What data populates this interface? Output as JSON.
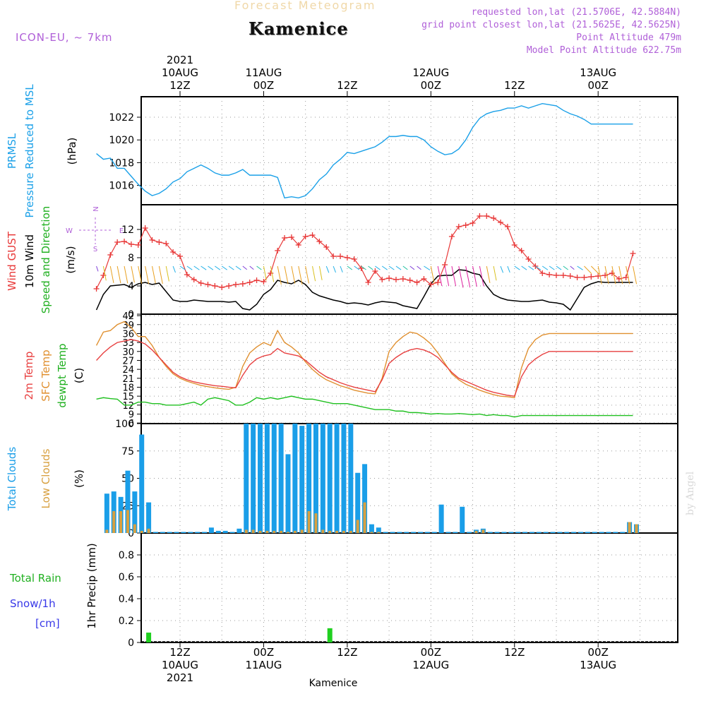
{
  "header": {
    "product": "Forecast Meteogram",
    "location": "Kamenice",
    "model": "ICON-EU, ~ 7km",
    "requested": "requested lon,lat (21.5706E, 42.5884N)",
    "gridpoint": "grid point closest lon,lat (21.5625E, 42.5625N)",
    "point_alt": "Point Altitude 479m",
    "model_alt": "Model Point Altitude 622.75m",
    "signature": "by Angel",
    "footer_location": "Kamenice"
  },
  "colors": {
    "pressure": "#1aa0e8",
    "gust": "#e83838",
    "wind": "#000000",
    "temp": "#e84040",
    "sfc": "#e09030",
    "dew": "#20c020",
    "clouds_total": "#1a9ee8",
    "clouds_low": "#d8a040",
    "rain": "#20d020",
    "snow": "#3838e8",
    "label_green": "#20b020",
    "purple": "#b060d8"
  },
  "time_axis": {
    "top": [
      {
        "hour": 12,
        "lines": [
          "2021",
          "10AUG",
          "12Z"
        ]
      },
      {
        "hour": 24,
        "lines": [
          "11AUG",
          "00Z"
        ]
      },
      {
        "hour": 36,
        "lines": [
          "12Z"
        ]
      },
      {
        "hour": 48,
        "lines": [
          "12AUG",
          "00Z"
        ]
      },
      {
        "hour": 60,
        "lines": [
          "12Z"
        ]
      },
      {
        "hour": 72,
        "lines": [
          "13AUG",
          "00Z"
        ]
      }
    ],
    "bottom": [
      {
        "hour": 12,
        "lines": [
          "12Z",
          "10AUG",
          "2021"
        ]
      },
      {
        "hour": 24,
        "lines": [
          "00Z",
          "11AUG"
        ]
      },
      {
        "hour": 36,
        "lines": [
          "12Z"
        ]
      },
      {
        "hour": 48,
        "lines": [
          "00Z",
          "12AUG"
        ]
      },
      {
        "hour": 60,
        "lines": [
          "12Z"
        ]
      },
      {
        "hour": 72,
        "lines": [
          "00Z",
          "13AUG"
        ]
      }
    ]
  },
  "panel_labels": {
    "pressure": [
      "PRMSL",
      "Pressure Reduced to MSL",
      "(hPa)"
    ],
    "wind": [
      "Wind GUST",
      "10m Wind",
      "Speed and Direction",
      "(m/s)"
    ],
    "compass": {
      "n": "N",
      "s": "S",
      "w": "W",
      "e": "E"
    },
    "temp": [
      "2m Temp",
      "SFC Temp",
      "dewpt Temp",
      "(C)"
    ],
    "clouds": [
      "Total Clouds",
      "Low Clouds",
      "(%)"
    ],
    "precip": [
      "Total   Rain",
      "Snow/1h",
      "[cm]",
      "1hr Precip (mm)"
    ]
  },
  "chart_data": [
    {
      "type": "line",
      "title": "PRMSL",
      "ylabel": "(hPa)",
      "ylim": [
        1014.3,
        1023.8
      ],
      "yticks": [
        "1016",
        "1018",
        "1020",
        "1022"
      ],
      "ytick_values": [
        1016,
        1018,
        1020,
        1022
      ],
      "x_hours": [
        0,
        1,
        2,
        3,
        4,
        5,
        6,
        7,
        8,
        9,
        10,
        11,
        12,
        13,
        14,
        15,
        16,
        17,
        18,
        19,
        20,
        21,
        22,
        23,
        24,
        25,
        26,
        27,
        28,
        29,
        30,
        31,
        32,
        33,
        34,
        35,
        36,
        37,
        38,
        39,
        40,
        41,
        42,
        43,
        44,
        45,
        46,
        47,
        48,
        49,
        50,
        51,
        52,
        53,
        54,
        55,
        56,
        57,
        58,
        59,
        60,
        61,
        62,
        63,
        64,
        65,
        66,
        67,
        68,
        69,
        70,
        71,
        72,
        73,
        74,
        75,
        76,
        77
      ],
      "series": [
        {
          "name": "PRMSL",
          "values": [
            1018.8,
            1018.3,
            1018.4,
            1017.5,
            1017.5,
            1016.8,
            1016.1,
            1015.5,
            1015.1,
            1015.3,
            1015.7,
            1016.3,
            1016.6,
            1017.2,
            1017.5,
            1017.8,
            1017.5,
            1017.1,
            1016.9,
            1016.9,
            1017.1,
            1017.4,
            1016.9,
            1016.9,
            1016.9,
            1016.9,
            1016.7,
            1014.9,
            1015.0,
            1014.9,
            1015.1,
            1015.7,
            1016.5,
            1017.0,
            1017.8,
            1018.3,
            1018.9,
            1018.8,
            1019.0,
            1019.2,
            1019.4,
            1019.8,
            1020.3,
            1020.3,
            1020.4,
            1020.3,
            1020.3,
            1020.0,
            1019.4,
            1019.0,
            1018.7,
            1018.8,
            1019.2,
            1020.0,
            1021.1,
            1021.9,
            1022.3,
            1022.5,
            1022.6,
            1022.8,
            1022.8,
            1023.0,
            1022.8,
            1023.0,
            1023.2,
            1023.1,
            1023.0,
            1022.6,
            1022.3,
            1022.1,
            1021.8,
            1021.4,
            1021.4,
            1021.4,
            1021.4,
            1021.4,
            1021.4,
            1021.4
          ]
        }
      ]
    },
    {
      "type": "line",
      "title": "Wind GUST / 10m Wind",
      "ylabel": "(m/s)",
      "ylim": [
        0,
        15.5
      ],
      "yticks": [
        "0",
        "4",
        "8",
        "12"
      ],
      "ytick_values": [
        0,
        4,
        8,
        12
      ],
      "x_hours": [
        0,
        1,
        2,
        3,
        4,
        5,
        6,
        7,
        8,
        9,
        10,
        11,
        12,
        13,
        14,
        15,
        16,
        17,
        18,
        19,
        20,
        21,
        22,
        23,
        24,
        25,
        26,
        27,
        28,
        29,
        30,
        31,
        32,
        33,
        34,
        35,
        36,
        37,
        38,
        39,
        40,
        41,
        42,
        43,
        44,
        45,
        46,
        47,
        48,
        49,
        50,
        51,
        52,
        53,
        54,
        55,
        56,
        57,
        58,
        59,
        60,
        61,
        62,
        63,
        64,
        65,
        66,
        67,
        68,
        69,
        70,
        71,
        72,
        73,
        74,
        75,
        76,
        77
      ],
      "series": [
        {
          "name": "Wind GUST",
          "values": [
            3.6,
            5.5,
            8.4,
            10.2,
            10.3,
            9.9,
            9.8,
            12.2,
            10.5,
            10.2,
            10.0,
            8.8,
            8.2,
            5.6,
            4.9,
            4.4,
            4.2,
            4.0,
            3.8,
            4.0,
            4.2,
            4.3,
            4.5,
            4.8,
            4.6,
            5.8,
            9.0,
            10.8,
            10.9,
            9.8,
            11.0,
            11.2,
            10.3,
            9.5,
            8.2,
            8.2,
            8.0,
            7.8,
            6.5,
            4.5,
            6.1,
            4.9,
            5.1,
            4.9,
            5.0,
            4.8,
            4.5,
            5.0,
            4.2,
            4.5,
            7.0,
            11.0,
            12.4,
            12.6,
            12.9,
            13.9,
            13.9,
            13.6,
            13.0,
            12.4,
            9.8,
            9.0,
            7.8,
            6.8,
            5.8,
            5.6,
            5.5,
            5.5,
            5.4,
            5.2,
            5.2,
            5.3,
            5.4,
            5.5,
            5.8,
            5.0,
            5.2,
            8.6
          ]
        },
        {
          "name": "10m Wind",
          "values": [
            0.6,
            2.8,
            4.0,
            4.1,
            4.2,
            3.8,
            4.3,
            4.5,
            4.2,
            4.4,
            3.2,
            2.0,
            1.8,
            1.8,
            2.0,
            1.9,
            1.8,
            1.8,
            1.8,
            1.7,
            1.8,
            0.8,
            0.6,
            1.4,
            2.8,
            3.5,
            4.8,
            4.5,
            4.3,
            4.8,
            4.2,
            3.1,
            2.6,
            2.3,
            2.0,
            1.8,
            1.5,
            1.6,
            1.5,
            1.3,
            1.6,
            1.8,
            1.7,
            1.6,
            1.2,
            1.0,
            0.8,
            2.5,
            4.3,
            5.4,
            5.5,
            5.5,
            6.3,
            6.2,
            5.8,
            5.6,
            4.0,
            2.8,
            2.3,
            2.0,
            1.9,
            1.8,
            1.8,
            1.9,
            2.0,
            1.7,
            1.6,
            1.4,
            0.6,
            2.2,
            3.8,
            4.3,
            4.6,
            4.5,
            4.5,
            4.5,
            4.5,
            4.5
          ]
        }
      ]
    },
    {
      "type": "line",
      "title": "2m Temp / SFC Temp / dewpt Temp",
      "ylabel": "(C)",
      "ylim": [
        5.8,
        42.5
      ],
      "yticks": [
        "6",
        "9",
        "12",
        "15",
        "18",
        "21",
        "24",
        "27",
        "30",
        "33",
        "36",
        "39",
        "42"
      ],
      "ytick_values": [
        6,
        9,
        12,
        15,
        18,
        21,
        24,
        27,
        30,
        33,
        36,
        39,
        42
      ],
      "x_hours": [
        0,
        1,
        2,
        3,
        4,
        5,
        6,
        7,
        8,
        9,
        10,
        11,
        12,
        13,
        14,
        15,
        16,
        17,
        18,
        19,
        20,
        21,
        22,
        23,
        24,
        25,
        26,
        27,
        28,
        29,
        30,
        31,
        32,
        33,
        34,
        35,
        36,
        37,
        38,
        39,
        40,
        41,
        42,
        43,
        44,
        45,
        46,
        47,
        48,
        49,
        50,
        51,
        52,
        53,
        54,
        55,
        56,
        57,
        58,
        59,
        60,
        61,
        62,
        63,
        64,
        65,
        66,
        67,
        68,
        69,
        70,
        71,
        72,
        73,
        74,
        75,
        76,
        77
      ],
      "series": [
        {
          "name": "2m Temp",
          "values": [
            27.0,
            29.5,
            31.5,
            33.0,
            33.5,
            34.0,
            33.5,
            32.5,
            30.5,
            28.0,
            25.5,
            23.0,
            21.5,
            20.5,
            19.8,
            19.3,
            18.9,
            18.5,
            18.3,
            18.0,
            17.8,
            22.0,
            25.5,
            27.5,
            28.5,
            29.0,
            31.0,
            29.5,
            29.0,
            28.5,
            27.0,
            25.0,
            23.0,
            21.5,
            20.5,
            19.5,
            18.7,
            18.0,
            17.5,
            17.0,
            16.5,
            20.5,
            26.0,
            28.0,
            29.5,
            30.5,
            31.0,
            30.5,
            29.5,
            28.0,
            25.5,
            23.0,
            21.0,
            20.0,
            19.0,
            18.0,
            17.0,
            16.3,
            15.8,
            15.3,
            15.0,
            21.5,
            25.5,
            27.5,
            29.0,
            30.0,
            30.0,
            30.0,
            30.0,
            30.0,
            30.0,
            30.0,
            30.0,
            30.0,
            30.0,
            30.0,
            30.0,
            30.0
          ]
        },
        {
          "name": "SFC Temp",
          "values": [
            32.0,
            36.5,
            37.0,
            39.0,
            40.0,
            38.0,
            35.0,
            35.0,
            32.0,
            28.0,
            25.0,
            22.5,
            21.0,
            20.0,
            19.3,
            18.6,
            18.2,
            17.8,
            17.5,
            17.3,
            18.0,
            25.0,
            29.5,
            31.5,
            33.0,
            32.0,
            37.0,
            33.0,
            31.5,
            29.5,
            26.5,
            24.0,
            22.0,
            20.5,
            19.5,
            18.5,
            17.8,
            17.0,
            16.5,
            16.0,
            15.8,
            21.0,
            30.0,
            33.0,
            35.0,
            36.5,
            36.0,
            34.5,
            32.5,
            29.5,
            26.0,
            22.5,
            20.5,
            19.0,
            18.0,
            17.0,
            16.2,
            15.5,
            15.0,
            14.8,
            14.5,
            24.5,
            31.0,
            34.0,
            35.5,
            36.0,
            36.0,
            36.0,
            36.0,
            36.0,
            36.0,
            36.0,
            36.0,
            36.0,
            36.0,
            36.0,
            36.0,
            36.0
          ]
        },
        {
          "name": "dewpt Temp",
          "values": [
            14.0,
            14.5,
            14.2,
            14.0,
            12.0,
            12.0,
            13.0,
            13.0,
            12.5,
            12.5,
            12.0,
            12.0,
            12.0,
            12.5,
            13.0,
            12.0,
            14.0,
            14.5,
            14.0,
            13.5,
            12.0,
            12.0,
            13.0,
            14.5,
            14.0,
            14.5,
            14.0,
            14.5,
            15.0,
            14.5,
            14.0,
            14.0,
            13.5,
            13.0,
            12.5,
            12.5,
            12.5,
            12.0,
            11.5,
            11.0,
            10.5,
            10.5,
            10.5,
            10.0,
            10.0,
            9.5,
            9.5,
            9.3,
            9.0,
            9.2,
            9.0,
            9.0,
            9.2,
            9.0,
            8.8,
            9.0,
            8.5,
            8.8,
            8.5,
            8.5,
            8.0,
            8.5,
            8.5,
            8.5,
            8.5,
            8.5,
            8.5,
            8.5,
            8.5,
            8.5,
            8.5,
            8.5,
            8.5,
            8.5,
            8.5,
            8.5,
            8.5,
            8.5
          ]
        }
      ]
    },
    {
      "type": "bar",
      "title": "Total Clouds / Low Clouds",
      "ylabel": "(%)",
      "ylim": [
        0,
        100
      ],
      "yticks": [
        "0",
        "25",
        "50",
        "75",
        "100"
      ],
      "ytick_values": [
        0,
        25,
        50,
        75,
        100
      ],
      "x_hours": [
        1,
        2,
        3,
        4,
        5,
        6,
        7,
        8,
        9,
        10,
        11,
        12,
        13,
        14,
        15,
        16,
        17,
        18,
        19,
        20,
        21,
        22,
        23,
        24,
        25,
        26,
        27,
        28,
        29,
        30,
        31,
        32,
        33,
        34,
        35,
        36,
        37,
        38,
        39,
        40,
        41,
        42,
        43,
        44,
        45,
        46,
        47,
        48,
        49,
        50,
        51,
        52,
        53,
        54,
        55,
        56,
        57,
        58,
        59,
        60,
        61,
        62,
        63,
        64,
        65,
        66,
        67,
        68,
        69,
        70,
        71,
        72,
        73,
        74,
        75,
        76,
        77
      ],
      "series": [
        {
          "name": "Total Clouds",
          "values": [
            36,
            38,
            33,
            57,
            38,
            90,
            28,
            1,
            1,
            1,
            1,
            1,
            1,
            1,
            1,
            5,
            2,
            2,
            1,
            4,
            100,
            100,
            100,
            100,
            100,
            100,
            72,
            100,
            98,
            100,
            100,
            100,
            100,
            100,
            100,
            100,
            55,
            63,
            8,
            5,
            1,
            1,
            1,
            1,
            1,
            1,
            1,
            1,
            26,
            1,
            1,
            24,
            1,
            3,
            4,
            1,
            1,
            1,
            1,
            1,
            1,
            1,
            1,
            1,
            1,
            1,
            1,
            1,
            1,
            1,
            1,
            1,
            1,
            1,
            1,
            10,
            8
          ]
        },
        {
          "name": "Low Clouds",
          "values": [
            3,
            20,
            20,
            21,
            8,
            2,
            4,
            0,
            0,
            0,
            0,
            0,
            0,
            0,
            0,
            0,
            0,
            0,
            0,
            0,
            3,
            3,
            2,
            2,
            2,
            2,
            1,
            2,
            3,
            20,
            18,
            3,
            2,
            2,
            2,
            2,
            12,
            28,
            1,
            1,
            0,
            0,
            0,
            0,
            0,
            0,
            0,
            0,
            0,
            0,
            0,
            0,
            0,
            2,
            3,
            0,
            0,
            0,
            0,
            0,
            0,
            0,
            0,
            0,
            0,
            0,
            0,
            0,
            0,
            0,
            0,
            0,
            0,
            0,
            0,
            10,
            8
          ]
        }
      ]
    },
    {
      "type": "bar",
      "title": "1hr Precip (mm)",
      "ylabel": "1hr Precip (mm)",
      "ylim": [
        0,
        1.0
      ],
      "yticks": [
        "0",
        "0.2",
        "0.4",
        "0.6",
        "0.8"
      ],
      "ytick_values": [
        0,
        0.2,
        0.4,
        0.6,
        0.8
      ],
      "x_hours": [
        7,
        33
      ],
      "series": [
        {
          "name": "Total Rain",
          "values": [
            0.09,
            0.13
          ]
        }
      ]
    }
  ]
}
